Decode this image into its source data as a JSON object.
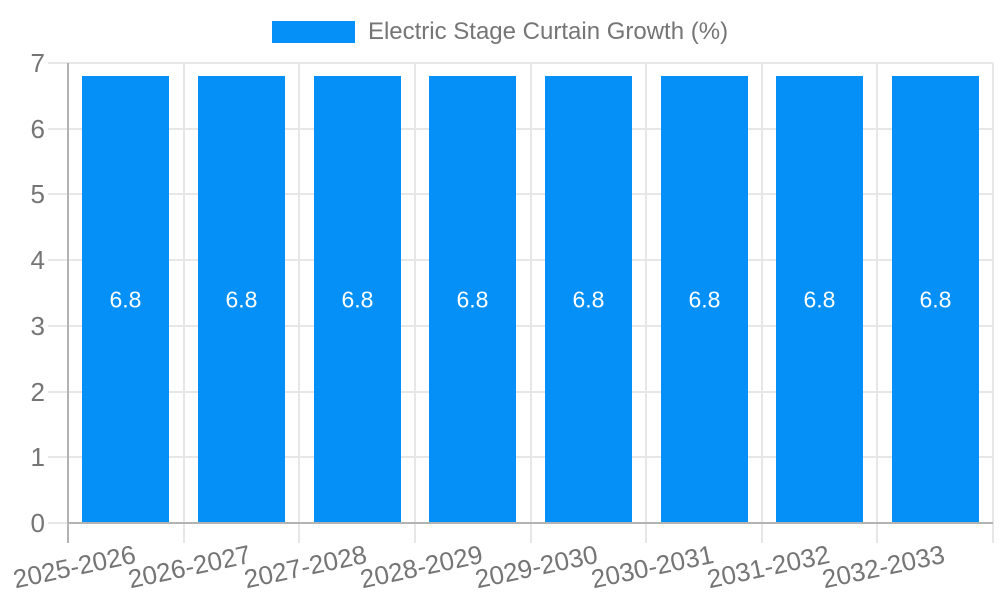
{
  "chart_data": {
    "type": "bar",
    "title": "Electric Stage Curtain Growth (%)",
    "categories": [
      "2025-2026",
      "2026-2027",
      "2027-2028",
      "2028-2029",
      "2029-2030",
      "2030-2031",
      "2031-2032",
      "2032-2033"
    ],
    "series": [
      {
        "name": "Electric Stage Curtain Growth (%)",
        "values": [
          6.8,
          6.8,
          6.8,
          6.8,
          6.8,
          6.8,
          6.8,
          6.8
        ]
      }
    ],
    "value_labels": [
      "6.8",
      "6.8",
      "6.8",
      "6.8",
      "6.8",
      "6.8",
      "6.8",
      "6.8"
    ],
    "xlabel": "",
    "ylabel": "",
    "ylim": [
      0,
      7
    ],
    "yticks": [
      0,
      1,
      2,
      3,
      4,
      5,
      6,
      7
    ],
    "grid": true,
    "legend_position": "top",
    "bar_color": "#0590f8",
    "colors": {
      "bar": "#0590f8",
      "gridline": "#e7e7e7",
      "axis_line": "#b3b3b3",
      "axis_text": "#757575",
      "value_label": "#ffffff",
      "background": "#ffffff"
    }
  }
}
